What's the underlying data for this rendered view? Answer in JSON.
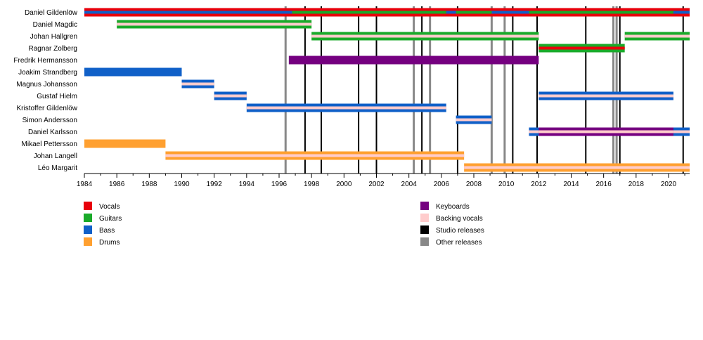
{
  "chart_data": {
    "type": "timeline",
    "x_range": [
      1984,
      2021.3
    ],
    "x_ticks": [
      "1984",
      "1986",
      "1988",
      "1990",
      "1992",
      "1994",
      "1996",
      "1998",
      "2000",
      "2002",
      "2004",
      "2006",
      "2008",
      "2010",
      "2012",
      "2014",
      "2016",
      "2018",
      "2020"
    ],
    "members": [
      "Daniel Gildenlöw",
      "Daniel Magdic",
      "Johan Hallgren",
      "Ragnar Zolberg",
      "Fredrik Hermansson",
      "Joakim Strandberg",
      "Magnus Johansson",
      "Gustaf Hielm",
      "Kristoffer Gildenlöw",
      "Simon Andersson",
      "Daniel Karlsson",
      "Mikael Pettersson",
      "Johan Langell",
      "Léo Margarit"
    ],
    "roles": {
      "vocals": {
        "label": "Vocals",
        "color": "#e8000b"
      },
      "guitars": {
        "label": "Guitars",
        "color": "#1aaa2a"
      },
      "bass": {
        "label": "Bass",
        "color": "#1060c8"
      },
      "drums": {
        "label": "Drums",
        "color": "#ffa030"
      },
      "keyboards": {
        "label": "Keyboards",
        "color": "#750080"
      },
      "backing": {
        "label": "Backing vocals",
        "color": "#ffcccc"
      },
      "studio": {
        "label": "Studio releases",
        "color": "#000000"
      },
      "other": {
        "label": "Other releases",
        "color": "#888888"
      }
    },
    "bars": [
      {
        "member": 0,
        "start": 1984,
        "end": 2021.3,
        "role": "vocals",
        "overlay": "guitars"
      },
      {
        "member": 0,
        "start": 1984,
        "end": 1996.8,
        "role": "vocals",
        "overlay2": "bass"
      },
      {
        "member": 0,
        "start": 2006.3,
        "end": 2006.9,
        "role": "vocals",
        "overlay2": "bass"
      },
      {
        "member": 0,
        "start": 2009.1,
        "end": 2011.4,
        "role": "vocals",
        "overlay2": "bass"
      },
      {
        "member": 0,
        "start": 2020.3,
        "end": 2021.3,
        "role": "vocals",
        "overlay2": "bass"
      },
      {
        "member": 1,
        "start": 1986,
        "end": 1998,
        "role": "guitars",
        "overlay": "backing"
      },
      {
        "member": 2,
        "start": 1998,
        "end": 2012,
        "role": "guitars",
        "overlay": "backing"
      },
      {
        "member": 2,
        "start": 2017.3,
        "end": 2021.3,
        "role": "guitars",
        "overlay": "backing"
      },
      {
        "member": 3,
        "start": 2012,
        "end": 2017.3,
        "role": "guitars",
        "overlay": "vocals"
      },
      {
        "member": 4,
        "start": 1996.6,
        "end": 2012,
        "role": "keyboards"
      },
      {
        "member": 5,
        "start": 1984,
        "end": 1990,
        "role": "bass"
      },
      {
        "member": 6,
        "start": 1990,
        "end": 1992,
        "role": "bass",
        "overlay": "backing"
      },
      {
        "member": 7,
        "start": 1992,
        "end": 1994,
        "role": "bass",
        "overlay": "backing"
      },
      {
        "member": 7,
        "start": 2012,
        "end": 2020.3,
        "role": "bass",
        "overlay": "backing"
      },
      {
        "member": 8,
        "start": 1994,
        "end": 2006.3,
        "role": "bass",
        "overlay": "backing"
      },
      {
        "member": 9,
        "start": 2006.9,
        "end": 2009.1,
        "role": "bass",
        "overlay": "backing"
      },
      {
        "member": 10,
        "start": 2011.4,
        "end": 2021.3,
        "role": "keyboards",
        "overlay": "backing"
      },
      {
        "member": 10,
        "start": 2011.4,
        "end": 2012,
        "role": "bass",
        "overlay": "backing"
      },
      {
        "member": 10,
        "start": 2020.3,
        "end": 2021.3,
        "role": "bass",
        "overlay": "backing"
      },
      {
        "member": 11,
        "start": 1984,
        "end": 1989,
        "role": "drums"
      },
      {
        "member": 12,
        "start": 1989,
        "end": 2007.4,
        "role": "drums",
        "overlay": "backing"
      },
      {
        "member": 13,
        "start": 2007.4,
        "end": 2021.3,
        "role": "drums",
        "overlay": "backing"
      }
    ],
    "studio_releases": [
      1997.6,
      1998.6,
      2000.9,
      2002.0,
      2004.8,
      2007.0,
      2010.4,
      2011.9,
      2014.9,
      2017.0,
      2020.9
    ],
    "other_releases": [
      1996.4,
      2004.3,
      2005.3,
      2009.1,
      2009.9,
      2016.6,
      2016.8
    ],
    "legend_left": [
      "vocals",
      "guitars",
      "bass",
      "drums"
    ],
    "legend_right": [
      "keyboards",
      "backing",
      "studio",
      "other"
    ]
  }
}
